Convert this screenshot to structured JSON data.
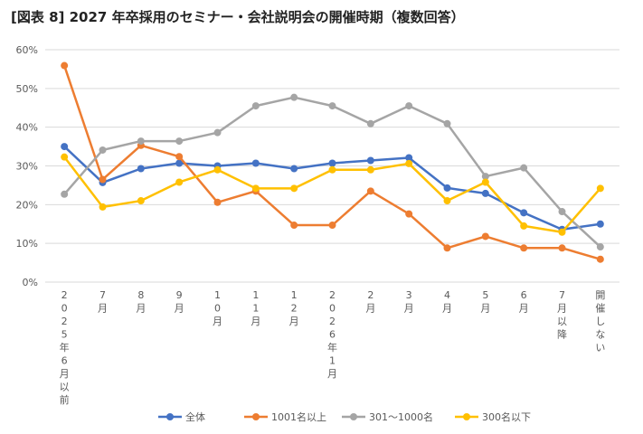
{
  "chart_data": {
    "type": "line",
    "title": "[図表 8] 2027 年卒採用のセミナー・会社説明会の開催時期（複数回答）",
    "xlabel": "",
    "ylabel": "",
    "ylim": [
      0,
      60
    ],
    "yticks": [
      0,
      10,
      20,
      30,
      40,
      50,
      60
    ],
    "ytick_labels": [
      "0%",
      "10%",
      "20%",
      "30%",
      "40%",
      "50%",
      "60%"
    ],
    "grid": true,
    "legend_position": "bottom",
    "categories": [
      "2025年6月以前",
      "7月",
      "8月",
      "9月",
      "10月",
      "11月",
      "12月",
      "2026年1月",
      "2月",
      "3月",
      "4月",
      "5月",
      "6月",
      "7月以降",
      "開催しない"
    ],
    "series": [
      {
        "name": "全体",
        "color": "#4472C4",
        "values": [
          35.0,
          25.7,
          29.3,
          30.7,
          30.0,
          30.7,
          29.3,
          30.7,
          31.4,
          32.1,
          24.3,
          22.9,
          17.9,
          13.6,
          15.0
        ]
      },
      {
        "name": "1001名以上",
        "color": "#ED7D31",
        "values": [
          55.9,
          26.5,
          35.3,
          32.4,
          20.6,
          23.5,
          14.7,
          14.7,
          23.5,
          17.6,
          8.8,
          11.8,
          8.8,
          8.8,
          5.9
        ]
      },
      {
        "name": "301～1000名",
        "color": "#A5A5A5",
        "values": [
          22.7,
          34.1,
          36.4,
          36.4,
          38.6,
          45.5,
          47.7,
          45.5,
          40.9,
          45.5,
          40.9,
          27.3,
          29.5,
          18.2,
          9.1
        ]
      },
      {
        "name": "300名以下",
        "color": "#FFC000",
        "values": [
          32.3,
          19.4,
          21.0,
          25.8,
          29.0,
          24.2,
          24.2,
          29.0,
          29.0,
          30.6,
          21.0,
          25.8,
          14.5,
          12.9,
          24.2
        ]
      }
    ]
  }
}
